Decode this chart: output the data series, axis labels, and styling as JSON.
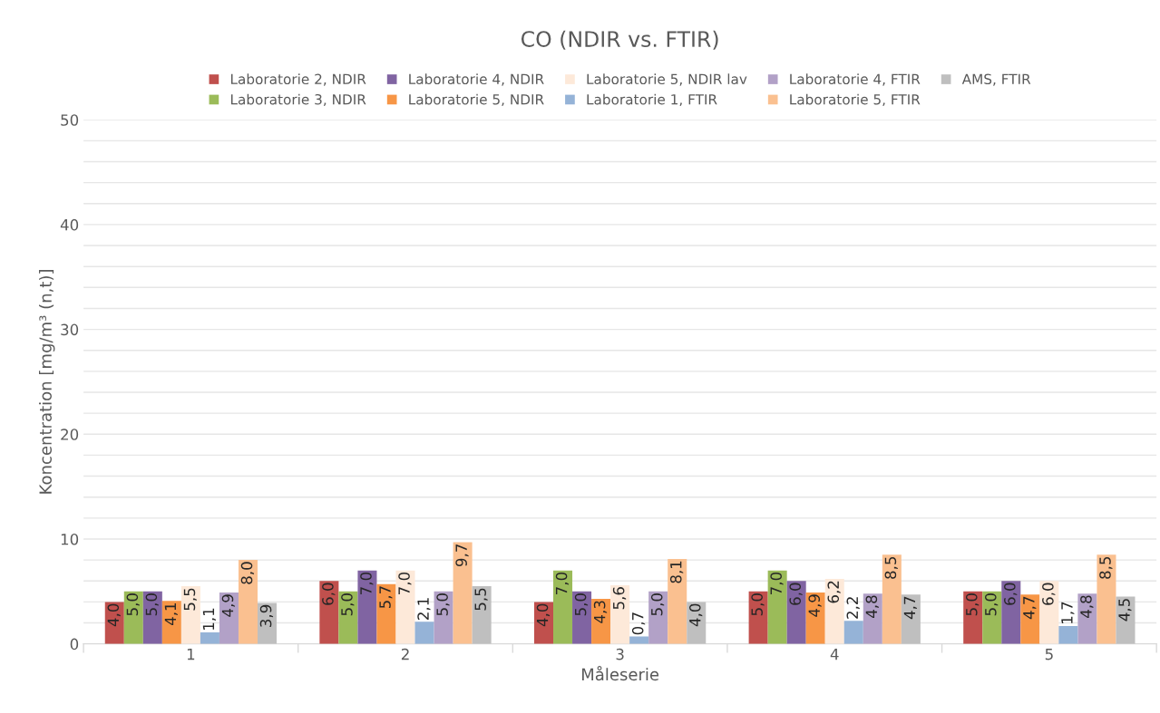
{
  "chart_data": {
    "type": "bar",
    "title": "CO (NDIR vs. FTIR)",
    "xlabel": "Måleserie",
    "ylabel": "Koncentration [mg/m³ (n,t)]",
    "categories": [
      "1",
      "2",
      "3",
      "4",
      "5"
    ],
    "series": [
      {
        "name": "Laboratorie 2, NDIR",
        "color": "#c0504d",
        "values": [
          4.0,
          6.0,
          4.0,
          5.0,
          5.0
        ],
        "value_labels": [
          "4,0",
          "6,0",
          "4,0",
          "5,0",
          "5,0"
        ]
      },
      {
        "name": "Laboratorie 3, NDIR",
        "color": "#9bbb59",
        "values": [
          5.0,
          5.0,
          7.0,
          7.0,
          5.0
        ],
        "value_labels": [
          "5,0",
          "5,0",
          "7,0",
          "7,0",
          "5,0"
        ]
      },
      {
        "name": "Laboratorie 4, NDIR",
        "color": "#8064a2",
        "values": [
          5.0,
          7.0,
          5.0,
          6.0,
          6.0
        ],
        "value_labels": [
          "5,0",
          "7,0",
          "5,0",
          "6,0",
          "6,0"
        ]
      },
      {
        "name": "Laboratorie 5, NDIR",
        "color": "#f79646",
        "values": [
          4.1,
          5.7,
          4.3,
          4.9,
          4.7
        ],
        "value_labels": [
          "4,1",
          "5,7",
          "4,3",
          "4,9",
          "4,7"
        ]
      },
      {
        "name": "Laboratorie 5, NDIR lav",
        "color": "#fde9d9",
        "values": [
          5.5,
          7.0,
          5.6,
          6.2,
          6.0
        ],
        "value_labels": [
          "5,5",
          "7,0",
          "5,6",
          "6,2",
          "6,0"
        ]
      },
      {
        "name": "Laboratorie 1, FTIR",
        "color": "#95b3d7",
        "values": [
          1.1,
          2.1,
          0.7,
          2.2,
          1.7
        ],
        "value_labels": [
          "1,1",
          "2,1",
          "0,7",
          "2,2",
          "1,7"
        ]
      },
      {
        "name": "Laboratorie 4, FTIR",
        "color": "#b2a1c7",
        "values": [
          4.9,
          5.0,
          5.0,
          4.8,
          4.8
        ],
        "value_labels": [
          "4,9",
          "5,0",
          "5,0",
          "4,8",
          "4,8"
        ]
      },
      {
        "name": "Laboratorie 5, FTIR",
        "color": "#fac090",
        "values": [
          8.0,
          9.7,
          8.1,
          8.5,
          8.5
        ],
        "value_labels": [
          "8,0",
          "9,7",
          "8,1",
          "8,5",
          "8,5"
        ]
      },
      {
        "name": "AMS, FTIR",
        "color": "#bfbfbf",
        "values": [
          3.9,
          5.5,
          4.0,
          4.7,
          4.5
        ],
        "value_labels": [
          "3,9",
          "5,5",
          "4,0",
          "4,7",
          "4,5"
        ]
      }
    ],
    "ylim": [
      0,
      50
    ],
    "yticks": [
      0,
      {
        "value": 2,
        "label": null
      },
      {
        "value": 4,
        "label": null
      },
      {
        "value": 6,
        "label": null
      },
      {
        "value": 8,
        "label": null
      },
      10,
      {
        "value": 12,
        "label": null
      },
      {
        "value": 14,
        "label": null
      },
      {
        "value": 16,
        "label": null
      },
      {
        "value": 18,
        "label": null
      },
      20,
      {
        "value": 22,
        "label": null
      },
      {
        "value": 24,
        "label": null
      },
      {
        "value": 26,
        "label": null
      },
      {
        "value": 28,
        "label": null
      },
      30,
      {
        "value": 32,
        "label": null
      },
      {
        "value": 34,
        "label": null
      },
      {
        "value": 36,
        "label": null
      },
      {
        "value": 38,
        "label": null
      },
      40,
      {
        "value": 42,
        "label": null
      },
      {
        "value": 44,
        "label": null
      },
      {
        "value": 46,
        "label": null
      },
      {
        "value": 48,
        "label": null
      },
      50
    ],
    "grid": "y",
    "legend": "top"
  }
}
